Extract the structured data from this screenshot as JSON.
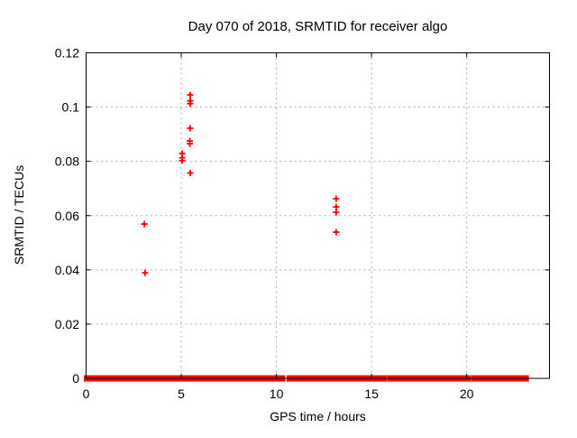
{
  "chart_data": {
    "type": "scatter",
    "title": "Day 070 of 2018, SRMTID for receiver algo",
    "xlabel": "GPS time / hours",
    "ylabel": "SRMTID / TECUs",
    "xlim": [
      0,
      24.35
    ],
    "ylim": [
      0,
      0.12
    ],
    "grid": true,
    "legend": "none",
    "marker": "plus",
    "marker_size": 3.5,
    "colors": {
      "points": "#ff0000",
      "grid": "#b0b0b0",
      "border": "#000000",
      "background": "#ffffff",
      "text": "#000000"
    },
    "xticks": [
      {
        "v": 0,
        "label": "0"
      },
      {
        "v": 5,
        "label": "5"
      },
      {
        "v": 10,
        "label": "10"
      },
      {
        "v": 15,
        "label": "15"
      },
      {
        "v": 20,
        "label": "20"
      }
    ],
    "yticks": [
      {
        "v": 0,
        "label": "0"
      },
      {
        "v": 0.02,
        "label": "0.02"
      },
      {
        "v": 0.04,
        "label": "0.04"
      },
      {
        "v": 0.06,
        "label": "0.06"
      },
      {
        "v": 0.08,
        "label": "0.08"
      },
      {
        "v": 0.1,
        "label": "0.1"
      },
      {
        "v": 0.12,
        "label": "0.12"
      }
    ],
    "points": [
      [
        3.06,
        0.0569
      ],
      [
        3.1,
        0.0389
      ],
      [
        5.05,
        0.0829
      ],
      [
        5.05,
        0.0813
      ],
      [
        5.05,
        0.0803
      ],
      [
        5.47,
        0.1045
      ],
      [
        5.47,
        0.1023
      ],
      [
        5.47,
        0.1013
      ],
      [
        5.47,
        0.0922
      ],
      [
        5.45,
        0.0875
      ],
      [
        5.45,
        0.0865
      ],
      [
        5.47,
        0.0757
      ],
      [
        13.14,
        0.0662
      ],
      [
        13.14,
        0.0632
      ],
      [
        13.14,
        0.0612
      ],
      [
        13.14,
        0.0539
      ]
    ],
    "zero_band_y": 0,
    "zero_band_segments": [
      [
        0.0,
        0.55
      ],
      [
        0.65,
        1.8
      ],
      [
        1.9,
        2.5
      ],
      [
        2.6,
        5.7
      ],
      [
        5.8,
        6.3
      ],
      [
        6.45,
        9.65
      ],
      [
        9.8,
        10.1
      ],
      [
        10.25,
        10.35
      ],
      [
        10.65,
        12.75
      ],
      [
        12.9,
        13.2
      ],
      [
        13.4,
        14.65
      ],
      [
        14.8,
        15.7
      ],
      [
        15.95,
        16.35
      ],
      [
        16.55,
        17.65
      ],
      [
        17.85,
        20.1
      ],
      [
        20.35,
        21.98
      ],
      [
        22.2,
        23.15
      ]
    ]
  }
}
